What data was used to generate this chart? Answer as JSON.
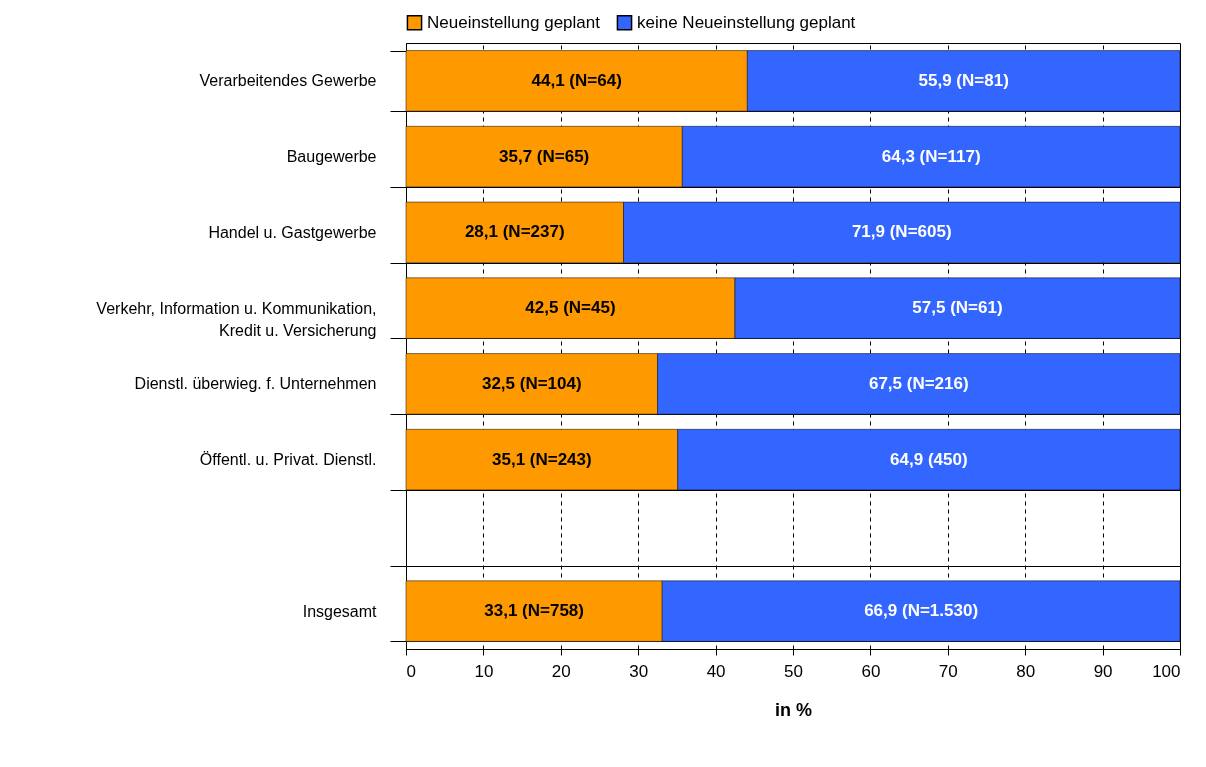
{
  "chart_data": {
    "type": "bar",
    "orientation": "horizontal",
    "stacked": true,
    "categories": [
      "Verarbeitendes Gewerbe",
      "Baugewerbe",
      "Handel u. Gastgewerbe",
      "Verkehr, Information u. Kommunikation,\nKredit u. Versicherung",
      "Dienstl. überwieg. f. Unternehmen",
      "Öffentl. u. Privat. Dienstl.",
      null,
      "Insgesamt"
    ],
    "series": [
      {
        "name": "Neueinstellung geplant",
        "color": "#ff9900",
        "values": [
          44.1,
          35.7,
          28.1,
          42.5,
          32.5,
          35.1,
          null,
          33.1
        ],
        "value_labels": [
          "44,1 (N=64)",
          "35,7 (N=65)",
          "28,1 (N=237)",
          "42,5 (N=45)",
          "32,5 (N=104)",
          "35,1 (N=243)",
          null,
          "33,1 (N=758)"
        ]
      },
      {
        "name": "keine Neueinstellung geplant",
        "color": "#3366ff",
        "values": [
          55.9,
          64.3,
          71.9,
          57.5,
          67.5,
          64.9,
          null,
          66.9
        ],
        "value_labels": [
          "55,9 (N=81)",
          "64,3 (N=117)",
          "71,9 (N=605)",
          "57,5 (N=61)",
          "67,5 (N=216)",
          "64,9 (450)",
          null,
          "66,9 (N=1.530)"
        ]
      }
    ],
    "xlim": [
      0,
      100
    ],
    "xticks": [
      0,
      10,
      20,
      30,
      40,
      50,
      60,
      70,
      80,
      90,
      100
    ],
    "xlabel": "in %",
    "grid": true,
    "legend": "top"
  }
}
